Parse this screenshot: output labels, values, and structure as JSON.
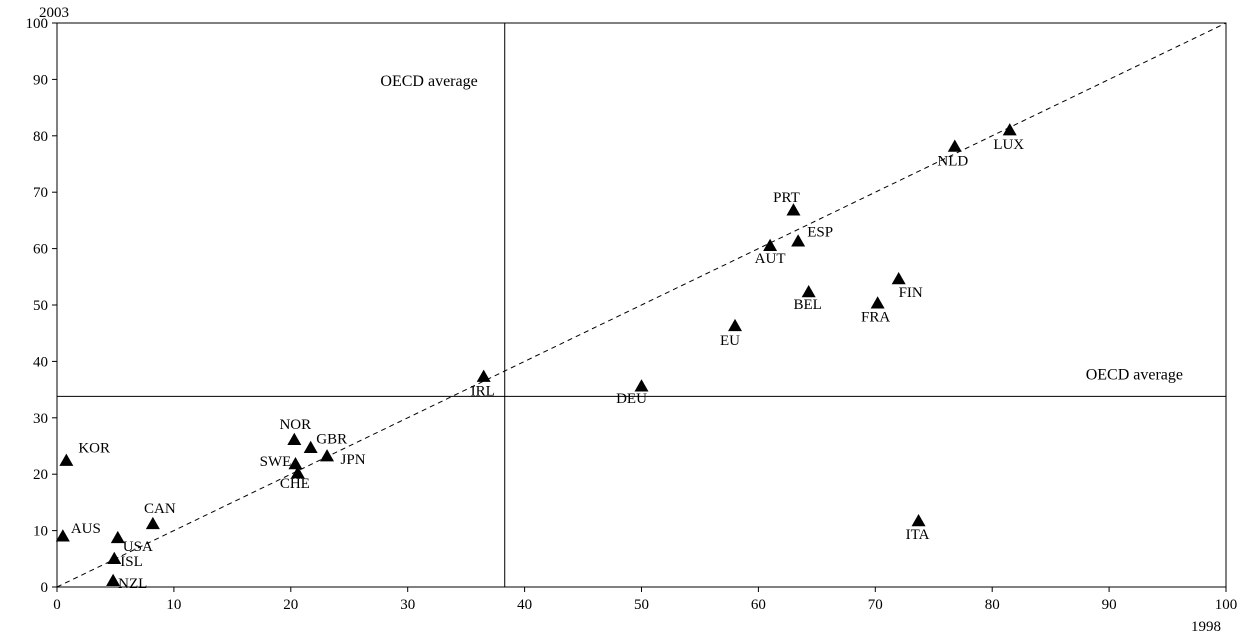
{
  "chart_data": {
    "type": "scatter",
    "title": "",
    "xlabel": "1998",
    "ylabel": "2003",
    "xlim": [
      0,
      100
    ],
    "ylim": [
      0,
      100
    ],
    "x_ticks": [
      0,
      10,
      20,
      30,
      40,
      50,
      60,
      70,
      80,
      90,
      100
    ],
    "y_ticks": [
      0,
      10,
      20,
      30,
      40,
      50,
      60,
      70,
      80,
      90,
      100
    ],
    "grid": false,
    "marker": "triangle",
    "diagonal": {
      "style": "dashed",
      "from": [
        0,
        0
      ],
      "to": [
        100,
        100
      ]
    },
    "reference_lines": {
      "vertical": {
        "x": 38.3,
        "label": "OECD average"
      },
      "horizontal": {
        "y": 33.8,
        "label": "OECD average"
      }
    },
    "points": [
      {
        "label": "KOR",
        "x": 0.8,
        "y": 22.4
      },
      {
        "label": "AUS",
        "x": 0.5,
        "y": 9.0
      },
      {
        "label": "USA",
        "x": 5.2,
        "y": 8.7
      },
      {
        "label": "ISL",
        "x": 4.9,
        "y": 5.0
      },
      {
        "label": "NZL",
        "x": 4.8,
        "y": 1.1
      },
      {
        "label": "CAN",
        "x": 8.2,
        "y": 11.2
      },
      {
        "label": "NOR",
        "x": 20.3,
        "y": 26.1
      },
      {
        "label": "GBR",
        "x": 21.7,
        "y": 24.7
      },
      {
        "label": "SWE",
        "x": 20.4,
        "y": 21.8
      },
      {
        "label": "CHE",
        "x": 20.6,
        "y": 20.2
      },
      {
        "label": "JPN",
        "x": 23.1,
        "y": 23.2
      },
      {
        "label": "IRL",
        "x": 36.5,
        "y": 37.3
      },
      {
        "label": "DEU",
        "x": 50.0,
        "y": 35.6
      },
      {
        "label": "EU",
        "x": 58.0,
        "y": 46.3
      },
      {
        "label": "PRT",
        "x": 63.0,
        "y": 66.8
      },
      {
        "label": "AUT",
        "x": 61.0,
        "y": 60.5
      },
      {
        "label": "ESP",
        "x": 63.4,
        "y": 61.3
      },
      {
        "label": "BEL",
        "x": 64.3,
        "y": 52.3
      },
      {
        "label": "FIN",
        "x": 72.0,
        "y": 54.6
      },
      {
        "label": "FRA",
        "x": 70.2,
        "y": 50.3
      },
      {
        "label": "ITA",
        "x": 73.7,
        "y": 11.7
      },
      {
        "label": "NLD",
        "x": 76.8,
        "y": 78.1
      },
      {
        "label": "LUX",
        "x": 81.5,
        "y": 81.0
      }
    ]
  }
}
